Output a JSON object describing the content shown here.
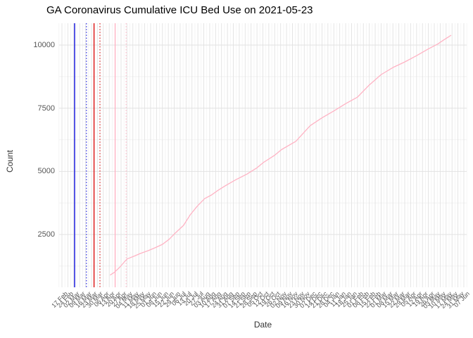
{
  "page": {
    "title": "GA Coronavirus Cumulative ICU Bed Use on 2021-05-23"
  },
  "colors": {
    "series_pink": "#ffb3c4",
    "vline_blue": "#1111dd",
    "vline_red": "#dd1111",
    "vline_pink": "#ffb3c4",
    "grid_major": "#e2e2e2",
    "grid_minor": "#f0f0f0",
    "axis_text": "#555555",
    "axis_title": "#333333"
  },
  "chart_data": {
    "type": "line",
    "title": "GA Coronavirus Cumulative ICU Bed Use on 2021-05-23",
    "xlabel": "Date",
    "ylabel": "Count",
    "legend": "none",
    "grid": true,
    "ylim": [
      400,
      10900
    ],
    "y_major_ticks": [
      2500,
      5000,
      7500,
      10000
    ],
    "y_minor_ticks": [
      1250,
      3750,
      6250,
      8750
    ],
    "x_tick_start": "2020-02-17",
    "x_tick_interval_days": 7,
    "x_tick_labels": [
      "17 Feb",
      "24 Feb",
      "02 Mar",
      "09 Mar",
      "16 Mar",
      "23 Mar",
      "30 Mar",
      "06 Apr",
      "13 Apr",
      "20 Apr",
      "27 Apr",
      "04 May",
      "11 May",
      "18 May",
      "25 May",
      "01 Jun",
      "08 Jun",
      "15 Jun",
      "22 Jun",
      "29 Jun",
      "06 Jul",
      "13 Jul",
      "20 Jul",
      "27 Jul",
      "03 Aug",
      "10 Aug",
      "17 Aug",
      "24 Aug",
      "31 Aug",
      "07 Sep",
      "14 Sep",
      "21 Sep",
      "28 Sep",
      "05 Oct",
      "12 Oct",
      "19 Oct",
      "26 Oct",
      "02 Nov",
      "09 Nov",
      "16 Nov",
      "23 Nov",
      "30 Nov",
      "07 Dec",
      "14 Dec",
      "21 Dec",
      "28 Dec",
      "04 Jan",
      "11 Jan",
      "18 Jan",
      "25 Jan",
      "01 Feb",
      "08 Feb",
      "15 Feb",
      "22 Feb",
      "01 Mar",
      "08 Mar",
      "15 Mar",
      "22 Mar",
      "29 Mar",
      "05 Apr",
      "12 Apr",
      "19 Apr",
      "26 Apr",
      "03 May",
      "10 May",
      "17 May",
      "24 May",
      "31 May",
      "07 Jun"
    ],
    "vlines": [
      {
        "date": "2020-03-03",
        "color": "#1111dd",
        "style": "solid"
      },
      {
        "date": "2020-03-17",
        "color": "#1111dd",
        "style": "dotted"
      },
      {
        "date": "2020-03-26",
        "color": "#dd1111",
        "style": "solid"
      },
      {
        "date": "2020-04-02",
        "color": "#dd1111",
        "style": "dotted"
      },
      {
        "date": "2020-04-20",
        "color": "#ffb3c4",
        "style": "solid"
      },
      {
        "date": "2020-05-03",
        "color": "#ffb3c4",
        "style": "dotted"
      }
    ],
    "series": [
      {
        "name": "Cumulative ICU bed use",
        "color": "#ffb3c4",
        "points": [
          [
            "2020-04-14",
            890
          ],
          [
            "2020-04-19",
            1000
          ],
          [
            "2020-04-25",
            1190
          ],
          [
            "2020-05-04",
            1530
          ],
          [
            "2020-05-13",
            1650
          ],
          [
            "2020-05-20",
            1750
          ],
          [
            "2020-05-29",
            1860
          ],
          [
            "2020-06-06",
            1970
          ],
          [
            "2020-06-15",
            2110
          ],
          [
            "2020-06-23",
            2310
          ],
          [
            "2020-07-01",
            2580
          ],
          [
            "2020-07-10",
            2860
          ],
          [
            "2020-07-18",
            3280
          ],
          [
            "2020-07-26",
            3610
          ],
          [
            "2020-08-04",
            3920
          ],
          [
            "2020-08-12",
            4060
          ],
          [
            "2020-08-20",
            4250
          ],
          [
            "2020-08-29",
            4440
          ],
          [
            "2020-09-10",
            4670
          ],
          [
            "2020-09-23",
            4890
          ],
          [
            "2020-10-05",
            5140
          ],
          [
            "2020-10-13",
            5360
          ],
          [
            "2020-10-26",
            5640
          ],
          [
            "2020-11-03",
            5860
          ],
          [
            "2020-11-20",
            6190
          ],
          [
            "2020-12-07",
            6810
          ],
          [
            "2020-12-21",
            7120
          ],
          [
            "2021-01-04",
            7390
          ],
          [
            "2021-01-18",
            7680
          ],
          [
            "2021-02-01",
            7940
          ],
          [
            "2021-02-15",
            8420
          ],
          [
            "2021-03-01",
            8830
          ],
          [
            "2021-03-15",
            9110
          ],
          [
            "2021-03-29",
            9330
          ],
          [
            "2021-04-12",
            9580
          ],
          [
            "2021-04-26",
            9850
          ],
          [
            "2021-05-07",
            10040
          ],
          [
            "2021-05-15",
            10220
          ],
          [
            "2021-05-23",
            10390
          ]
        ]
      }
    ]
  }
}
